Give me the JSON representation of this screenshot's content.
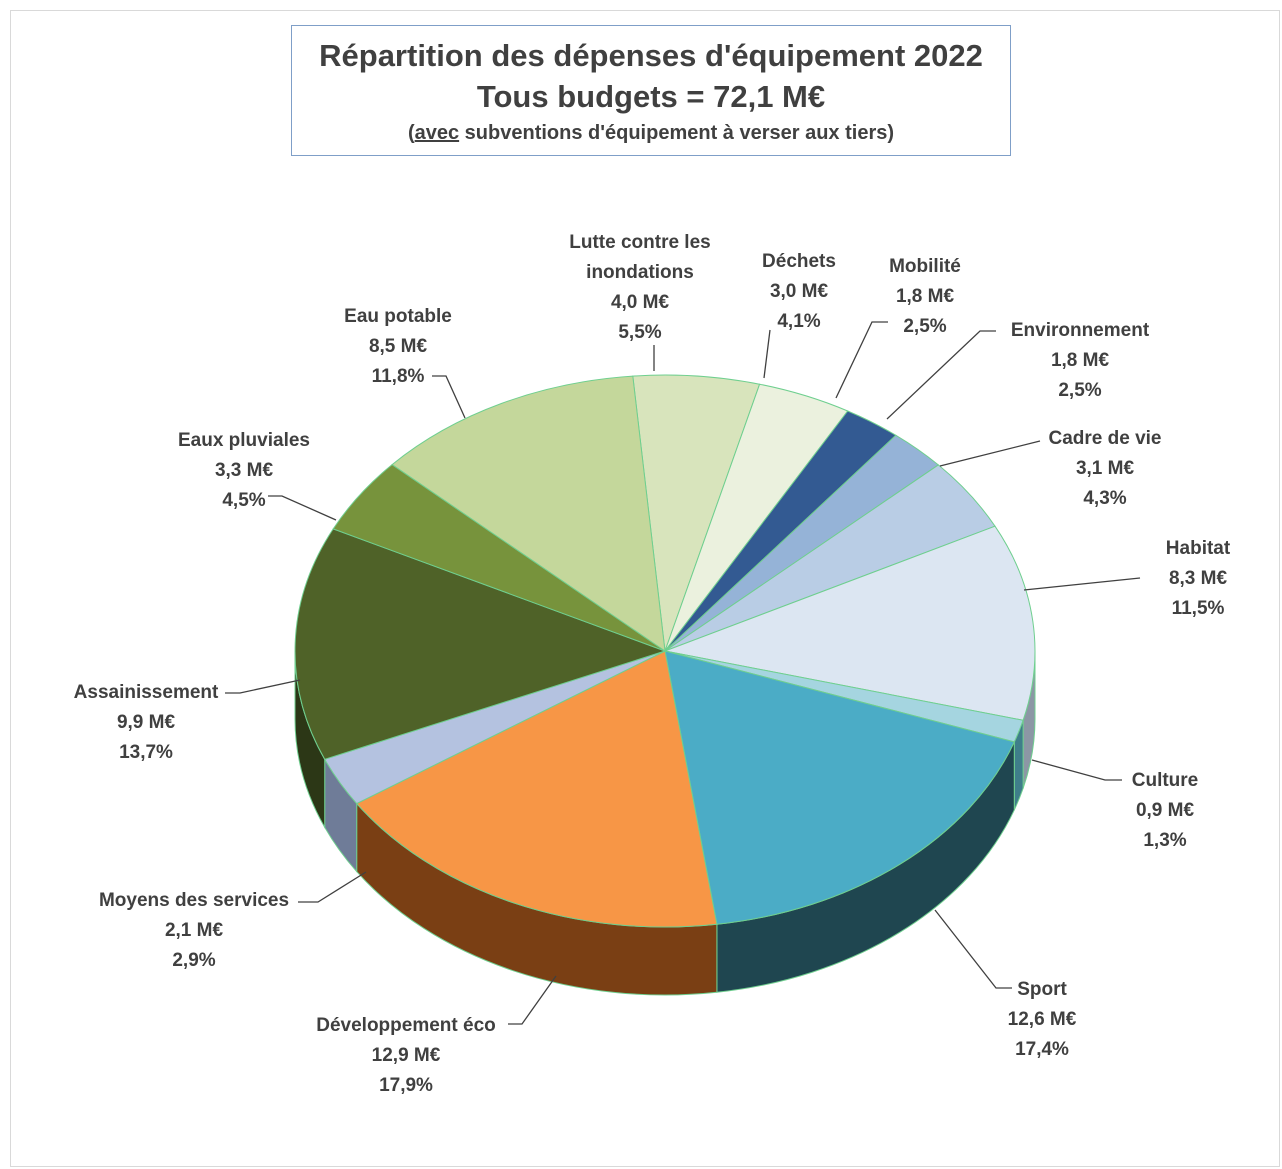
{
  "chart_data": {
    "type": "pie",
    "title": "Répartition des dépenses d'équipement 2022",
    "subtitle": "Tous budgets = 72,1 M€",
    "note_underlined": "avec",
    "note_rest": " subventions d'équipement à verser aux tiers)",
    "note_open": "(",
    "slices": [
      {
        "label": "Lutte contre les inondations",
        "label_lines": [
          "Lutte contre les",
          "inondations"
        ],
        "amount": "4,0 M€",
        "percent": "5,5%",
        "value": 5.5,
        "color": "#d8e4bc",
        "side": "#8fa36b"
      },
      {
        "label": "Déchets",
        "label_lines": [
          "Déchets"
        ],
        "amount": "3,0 M€",
        "percent": "4,1%",
        "value": 4.1,
        "color": "#ebf1de",
        "side": "#a9b596"
      },
      {
        "label": "Mobilité",
        "label_lines": [
          "Mobilité"
        ],
        "amount": "1,8 M€",
        "percent": "2,5%",
        "value": 2.5,
        "color": "#335a92",
        "side": "#1e3658"
      },
      {
        "label": "Environnement",
        "label_lines": [
          "Environnement"
        ],
        "amount": "1,8 M€",
        "percent": "2,5%",
        "value": 2.5,
        "color": "#95b3d7",
        "side": "#5f7896"
      },
      {
        "label": "Cadre de vie",
        "label_lines": [
          "Cadre de vie"
        ],
        "amount": "3,1 M€",
        "percent": "4,3%",
        "value": 4.3,
        "color": "#b9cde5",
        "side": "#7a8ca3"
      },
      {
        "label": "Habitat",
        "label_lines": [
          "Habitat"
        ],
        "amount": "8,3 M€",
        "percent": "11,5%",
        "value": 11.5,
        "color": "#dce6f2",
        "side": "#8c97a5"
      },
      {
        "label": "Culture",
        "label_lines": [
          "Culture"
        ],
        "amount": "0,9 M€",
        "percent": "1,3%",
        "value": 1.3,
        "color": "#a5d5e0",
        "side": "#3f7e8a"
      },
      {
        "label": "Sport",
        "label_lines": [
          "Sport"
        ],
        "amount": "12,6 M€",
        "percent": "17,4%",
        "value": 17.4,
        "color": "#4bacc6",
        "side": "#1f4650"
      },
      {
        "label": "Développement éco",
        "label_lines": [
          "Développement éco"
        ],
        "amount": "12,9 M€",
        "percent": "17,9%",
        "value": 17.9,
        "color": "#f79646",
        "side": "#7a3f14"
      },
      {
        "label": "Moyens des services",
        "label_lines": [
          "Moyens des services"
        ],
        "amount": "2,1 M€",
        "percent": "2,9%",
        "value": 2.9,
        "color": "#b4c2e0",
        "side": "#6f7c98"
      },
      {
        "label": "Assainissement",
        "label_lines": [
          "Assainissement"
        ],
        "amount": "9,9 M€",
        "percent": "13,7%",
        "value": 13.7,
        "color": "#4f6228",
        "side": "#2c3716"
      },
      {
        "label": "Eaux pluviales",
        "label_lines": [
          "Eaux pluviales"
        ],
        "amount": "3,3 M€",
        "percent": "4,5%",
        "value": 4.5,
        "color": "#77933c",
        "side": "#44561f"
      },
      {
        "label": "Eau potable",
        "label_lines": [
          "Eau potable"
        ],
        "amount": "8,5 M€",
        "percent": "11,8%",
        "value": 11.8,
        "color": "#c4d79b",
        "side": "#7d8c5f"
      }
    ]
  }
}
